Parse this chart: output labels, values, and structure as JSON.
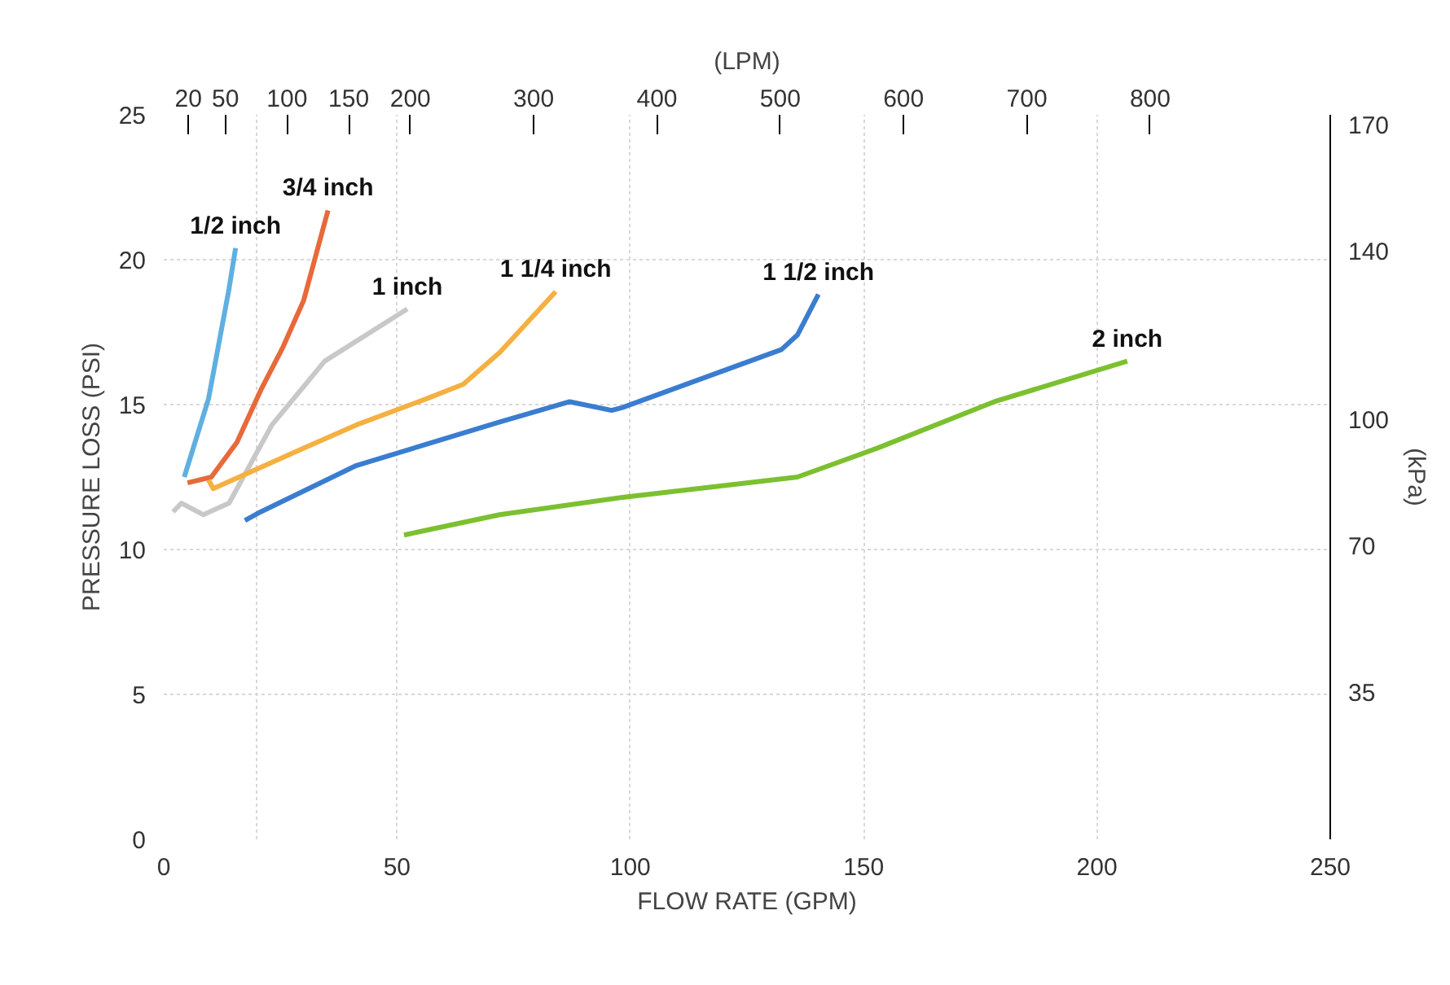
{
  "chart_data": {
    "type": "line",
    "xlabel": "FLOW RATE (GPM)",
    "ylabel": "PRESSURE LOSS (PSI)",
    "y2label": "(kPa)",
    "x2label": "(LPM)",
    "xlim": [
      0,
      250
    ],
    "xticks": [
      0,
      50,
      100,
      150,
      200,
      250
    ],
    "ylim": [
      0,
      25
    ],
    "yticks": [
      0,
      5,
      10,
      15,
      20,
      25
    ],
    "x2lim": [
      0,
      946
    ],
    "x2ticks": [
      20,
      50,
      100,
      150,
      200,
      300,
      400,
      500,
      600,
      700,
      800
    ],
    "y2lim": [
      0,
      172.4
    ],
    "y2ticks": [
      35,
      70,
      100,
      140,
      170
    ],
    "grid": true,
    "legend": false,
    "line_style": "solid",
    "marker": "none",
    "series": [
      {
        "name": "1/2 inch",
        "color": "#5fb0e0",
        "x": [
          4.4,
          9.6,
          14.0,
          15.4
        ],
        "values": [
          12.5,
          15.2,
          19.0,
          20.4
        ]
      },
      {
        "name": "3/4 inch",
        "color": "#e8693a",
        "x": [
          5.1,
          10.2,
          15.7,
          20.8,
          25.6,
          30.0,
          35.2
        ],
        "values": [
          12.3,
          12.5,
          13.7,
          15.5,
          17.0,
          18.6,
          21.7
        ]
      },
      {
        "name": "1 inch",
        "color": "#c8c8c8",
        "x": [
          2.0,
          3.8,
          8.5,
          14.0,
          23.2,
          34.5,
          52.2
        ],
        "values": [
          11.3,
          11.6,
          11.2,
          11.6,
          14.3,
          16.5,
          18.3
        ]
      },
      {
        "name": "1 1/4 inch",
        "color": "#f5b041",
        "x": [
          9.6,
          10.6,
          30.0,
          41.3,
          56.3,
          64.2,
          72.0,
          84.0
        ],
        "values": [
          12.4,
          12.1,
          13.5,
          14.3,
          15.2,
          15.7,
          16.8,
          18.9
        ]
      },
      {
        "name": "1 1/2 inch",
        "color": "#3a7dd0",
        "x": [
          17.4,
          20.8,
          41.3,
          72.0,
          87.0,
          96.0,
          98.3,
          132.4,
          135.8,
          140.3
        ],
        "values": [
          11.0,
          11.3,
          12.9,
          14.4,
          15.1,
          14.8,
          14.9,
          16.9,
          17.4,
          18.8
        ]
      },
      {
        "name": "2 inch",
        "color": "#7cc030",
        "x": [
          51.5,
          72.0,
          98.3,
          135.8,
          153.0,
          178.0,
          206.5
        ],
        "values": [
          10.5,
          11.2,
          11.8,
          12.5,
          13.5,
          15.1,
          16.5
        ]
      }
    ]
  }
}
